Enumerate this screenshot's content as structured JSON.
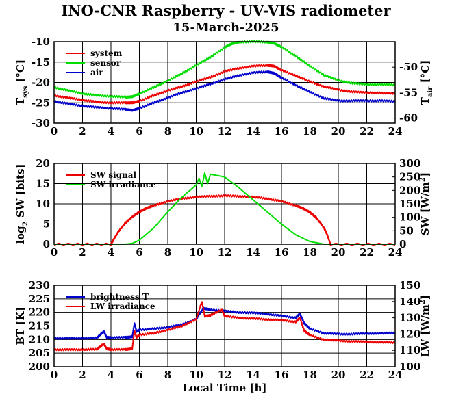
{
  "title": "INO-CNR Raspberry - UV-VIS radiometer",
  "subtitle": "15-March-2025",
  "colors": {
    "red": "#ee0000",
    "green": "#00dd00",
    "blue": "#0000cc",
    "grid": "#000000"
  },
  "chart_data": [
    {
      "type": "line",
      "x_axis": {
        "label": "",
        "range": [
          0,
          24
        ],
        "ticks": [
          0,
          2,
          4,
          6,
          8,
          10,
          12,
          14,
          16,
          18,
          20,
          22,
          24
        ]
      },
      "left_axis": {
        "label_main": "T",
        "label_sub": "sys",
        "label_tail": " [°C]",
        "range": [
          -30,
          -10
        ],
        "ticks": [
          -30,
          -25,
          -20,
          -15,
          -10
        ]
      },
      "right_axis": {
        "label_main": "T",
        "label_sub": "air",
        "label_tail": " [°C]",
        "range": [
          -61,
          -45
        ],
        "ticks": [
          -60,
          -55,
          -50
        ]
      },
      "legend": {
        "placement": "top-left"
      },
      "series": [
        {
          "name": "system",
          "color": "red",
          "axis": "left",
          "x": [
            0,
            1,
            2,
            3,
            4,
            5,
            5.5,
            6,
            7,
            8,
            9,
            10,
            11,
            12,
            13,
            14,
            15,
            15.5,
            16,
            17,
            18,
            19,
            20,
            21,
            22,
            23,
            24
          ],
          "y": [
            -23.2,
            -23.8,
            -24.3,
            -24.8,
            -25,
            -25,
            -25,
            -24.6,
            -23.2,
            -22,
            -21,
            -19.8,
            -18.7,
            -17.3,
            -16.5,
            -16,
            -15.8,
            -16,
            -17,
            -18.3,
            -19.8,
            -21,
            -21.8,
            -22.3,
            -22.5,
            -22.6,
            -22.7
          ]
        },
        {
          "name": "sensor",
          "color": "green",
          "axis": "left",
          "x": [
            0,
            1,
            2,
            3,
            4,
            5,
            5.5,
            6,
            7,
            8,
            9,
            10,
            11,
            12,
            12.5,
            13,
            14,
            15,
            15.5,
            16,
            17,
            18,
            19,
            20,
            21,
            22,
            23,
            24
          ],
          "y": [
            -21.2,
            -22,
            -22.7,
            -23.2,
            -23.4,
            -23.6,
            -23.5,
            -22.8,
            -21.2,
            -19.6,
            -17.8,
            -15.8,
            -13.8,
            -11.4,
            -10.5,
            -10.1,
            -10,
            -10.1,
            -10.4,
            -11.3,
            -13.5,
            -16,
            -18.2,
            -19.5,
            -20.2,
            -20.5,
            -20.5,
            -20.6
          ]
        },
        {
          "name": "air",
          "color": "blue",
          "axis": "right",
          "x": [
            0,
            1,
            2,
            3,
            4,
            5,
            5.5,
            6,
            7,
            8,
            9,
            10,
            11,
            12,
            13,
            14,
            15,
            15.5,
            16,
            17,
            18,
            19,
            20,
            21,
            22,
            23,
            24
          ],
          "y": [
            -56.7,
            -57.2,
            -57.6,
            -57.9,
            -58.1,
            -58.3,
            -58.5,
            -58.1,
            -57,
            -56,
            -55,
            -54.2,
            -53.3,
            -52.4,
            -51.6,
            -51.1,
            -50.9,
            -51.2,
            -52.1,
            -53.5,
            -54.9,
            -56.1,
            -56.6,
            -56.6,
            -56.6,
            -56.6,
            -56.7
          ]
        }
      ]
    },
    {
      "type": "line",
      "x_axis": {
        "label": "",
        "range": [
          0,
          24
        ],
        "ticks": [
          0,
          2,
          4,
          6,
          8,
          10,
          12,
          14,
          16,
          18,
          20,
          22,
          24
        ]
      },
      "left_axis": {
        "label_main": "log",
        "label_sub": "2",
        "label_tail": " SW [bits]",
        "range": [
          0,
          20
        ],
        "ticks": [
          0,
          5,
          10,
          15,
          20
        ]
      },
      "right_axis": {
        "label_main": "SW [W/m",
        "label_sup": "2",
        "label_tail": "]",
        "range": [
          0,
          300
        ],
        "ticks": [
          0,
          50,
          100,
          150,
          200,
          250,
          300
        ]
      },
      "legend": {
        "placement": "top-left"
      },
      "series": [
        {
          "name": "SW signal",
          "color": "red",
          "axis": "left",
          "x": [
            0,
            4,
            4.2,
            4.5,
            5,
            5.5,
            6,
            6.5,
            7,
            8,
            9,
            10,
            11,
            12,
            13,
            14,
            15,
            16,
            17,
            17.5,
            18,
            18.5,
            19,
            19.2,
            19.45,
            24
          ],
          "y": [
            0,
            0,
            1.2,
            3,
            5.2,
            6.8,
            8,
            8.9,
            9.6,
            10.6,
            11.3,
            11.7,
            11.9,
            12,
            11.9,
            11.7,
            11.3,
            10.6,
            9.6,
            8.9,
            7.9,
            6.4,
            4,
            2.5,
            0,
            0
          ]
        },
        {
          "name": "SW irradiance",
          "color": "green",
          "axis": "right",
          "x": [
            0,
            5,
            5.5,
            6,
            7,
            8,
            9,
            10,
            10.2,
            10.4,
            10.6,
            10.8,
            11,
            11.5,
            12,
            12.5,
            13,
            14,
            15,
            16,
            17,
            18,
            19,
            20,
            24
          ],
          "y": [
            0,
            0,
            3,
            15,
            60,
            120,
            175,
            220,
            245,
            215,
            265,
            225,
            260,
            255,
            250,
            230,
            210,
            165,
            120,
            75,
            35,
            10,
            0,
            0,
            0
          ]
        }
      ]
    },
    {
      "type": "line",
      "x_axis": {
        "label": "Local Time [h]",
        "range": [
          0,
          24
        ],
        "ticks": [
          0,
          2,
          4,
          6,
          8,
          10,
          12,
          14,
          16,
          18,
          20,
          22,
          24
        ]
      },
      "left_axis": {
        "label_main": "BT [K]",
        "range": [
          200,
          230
        ],
        "ticks": [
          200,
          205,
          210,
          215,
          220,
          225,
          230
        ]
      },
      "right_axis": {
        "label_main": "LW [W/m",
        "label_sup": "2",
        "label_tail": "]",
        "range": [
          100,
          150
        ],
        "ticks": [
          100,
          110,
          120,
          130,
          140,
          150
        ]
      },
      "legend": {
        "placement": "top-left"
      },
      "series": [
        {
          "name": "brightness T",
          "color": "blue",
          "axis": "left",
          "x": [
            0,
            1,
            2,
            3,
            3.5,
            3.7,
            4,
            5,
            5.5,
            5.65,
            5.8,
            6,
            7,
            8,
            9,
            10,
            10.5,
            11,
            12,
            13,
            14,
            15,
            16,
            17,
            17.3,
            17.6,
            18,
            19,
            20,
            21,
            22,
            23,
            24
          ],
          "y": [
            210.5,
            210.4,
            210.5,
            210.6,
            213,
            210.8,
            210.7,
            210.8,
            211,
            216,
            213,
            213.5,
            214,
            214.5,
            215.5,
            217.5,
            221.5,
            221,
            220.5,
            220,
            219.8,
            219.4,
            218.7,
            218,
            219.5,
            216,
            214,
            212.3,
            212,
            212,
            212.2,
            212.3,
            212.4
          ]
        },
        {
          "name": "LW irradiance",
          "color": "red",
          "axis": "right",
          "x": [
            0,
            1,
            2,
            3,
            3.5,
            3.7,
            4,
            5,
            5.5,
            5.65,
            5.8,
            6,
            7,
            8,
            9,
            10,
            10.4,
            10.6,
            11,
            11.8,
            12,
            13,
            14,
            15,
            16,
            17,
            17.3,
            17.6,
            18,
            19,
            20,
            21,
            22,
            23,
            24
          ],
          "y": [
            110.5,
            110.4,
            110.5,
            110.7,
            114,
            111,
            110.5,
            110.5,
            111,
            122,
            118,
            119.5,
            120.5,
            122.5,
            125,
            129,
            140,
            131,
            131.5,
            135,
            131,
            130,
            129.5,
            129,
            128.5,
            127.5,
            130,
            122,
            119.5,
            116.5,
            116,
            115.5,
            115.2,
            115,
            114.8
          ]
        }
      ]
    }
  ]
}
